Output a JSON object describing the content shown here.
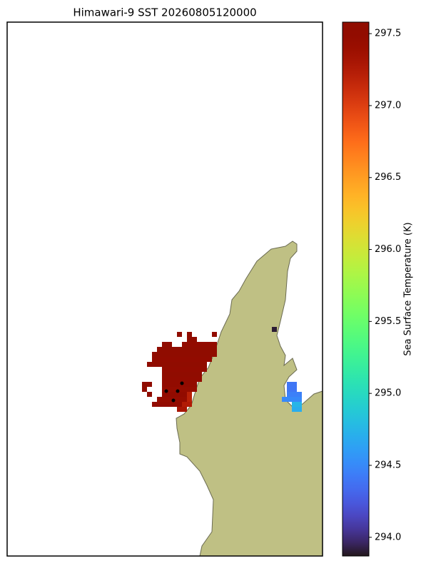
{
  "chart_data": {
    "type": "heatmap",
    "title": "Himawari-9 SST 20260805120000",
    "colorbar_label": "Sea Surface Temperature (K)",
    "colormap": "turbo",
    "clim": [
      293.87,
      297.58
    ],
    "cticks": [
      {
        "value": 294,
        "label": "294.0"
      },
      294.5,
      {
        "value": 295,
        "label": "295.0"
      },
      295.5,
      {
        "value": 296,
        "label": "296.0"
      },
      296.5,
      {
        "value": 297,
        "label": "297.0"
      },
      297.5
    ],
    "land_color": "#bfc084",
    "runs": [
      [
        62,
        34,
        34,
        297.55
      ],
      [
        62,
        36,
        36,
        297.55
      ],
      [
        62,
        41,
        41,
        297.5
      ],
      [
        63,
        36,
        37,
        297.55
      ],
      [
        64,
        31,
        32,
        297.55
      ],
      [
        64,
        35,
        41,
        297.5
      ],
      [
        65,
        30,
        41,
        297.55
      ],
      [
        66,
        29,
        41,
        297.55
      ],
      [
        67,
        29,
        40,
        297.5
      ],
      [
        68,
        28,
        39,
        297.55
      ],
      [
        69,
        31,
        39,
        297.5
      ],
      [
        70,
        31,
        38,
        297.55
      ],
      [
        71,
        31,
        38,
        297.5
      ],
      [
        72,
        27,
        28,
        297.55
      ],
      [
        72,
        31,
        37,
        297.5
      ],
      [
        73,
        27,
        27,
        297.55
      ],
      [
        73,
        31,
        37,
        297.45
      ],
      [
        74,
        28,
        28,
        297.55
      ],
      [
        74,
        31,
        35,
        297.5
      ],
      [
        74,
        36,
        36,
        297.2
      ],
      [
        75,
        30,
        35,
        297.45
      ],
      [
        75,
        36,
        36,
        297.2
      ],
      [
        76,
        29,
        34,
        297.5
      ],
      [
        76,
        35,
        36,
        297.25
      ],
      [
        77,
        34,
        35,
        297.3
      ],
      [
        61,
        53,
        53,
        293.9
      ],
      [
        72,
        56,
        57,
        294.4
      ],
      [
        73,
        56,
        57,
        294.4
      ],
      [
        74,
        56,
        58,
        294.45
      ],
      [
        75,
        55,
        58,
        294.5
      ],
      [
        76,
        57,
        58,
        294.75
      ],
      [
        77,
        57,
        58,
        294.7
      ]
    ]
  }
}
